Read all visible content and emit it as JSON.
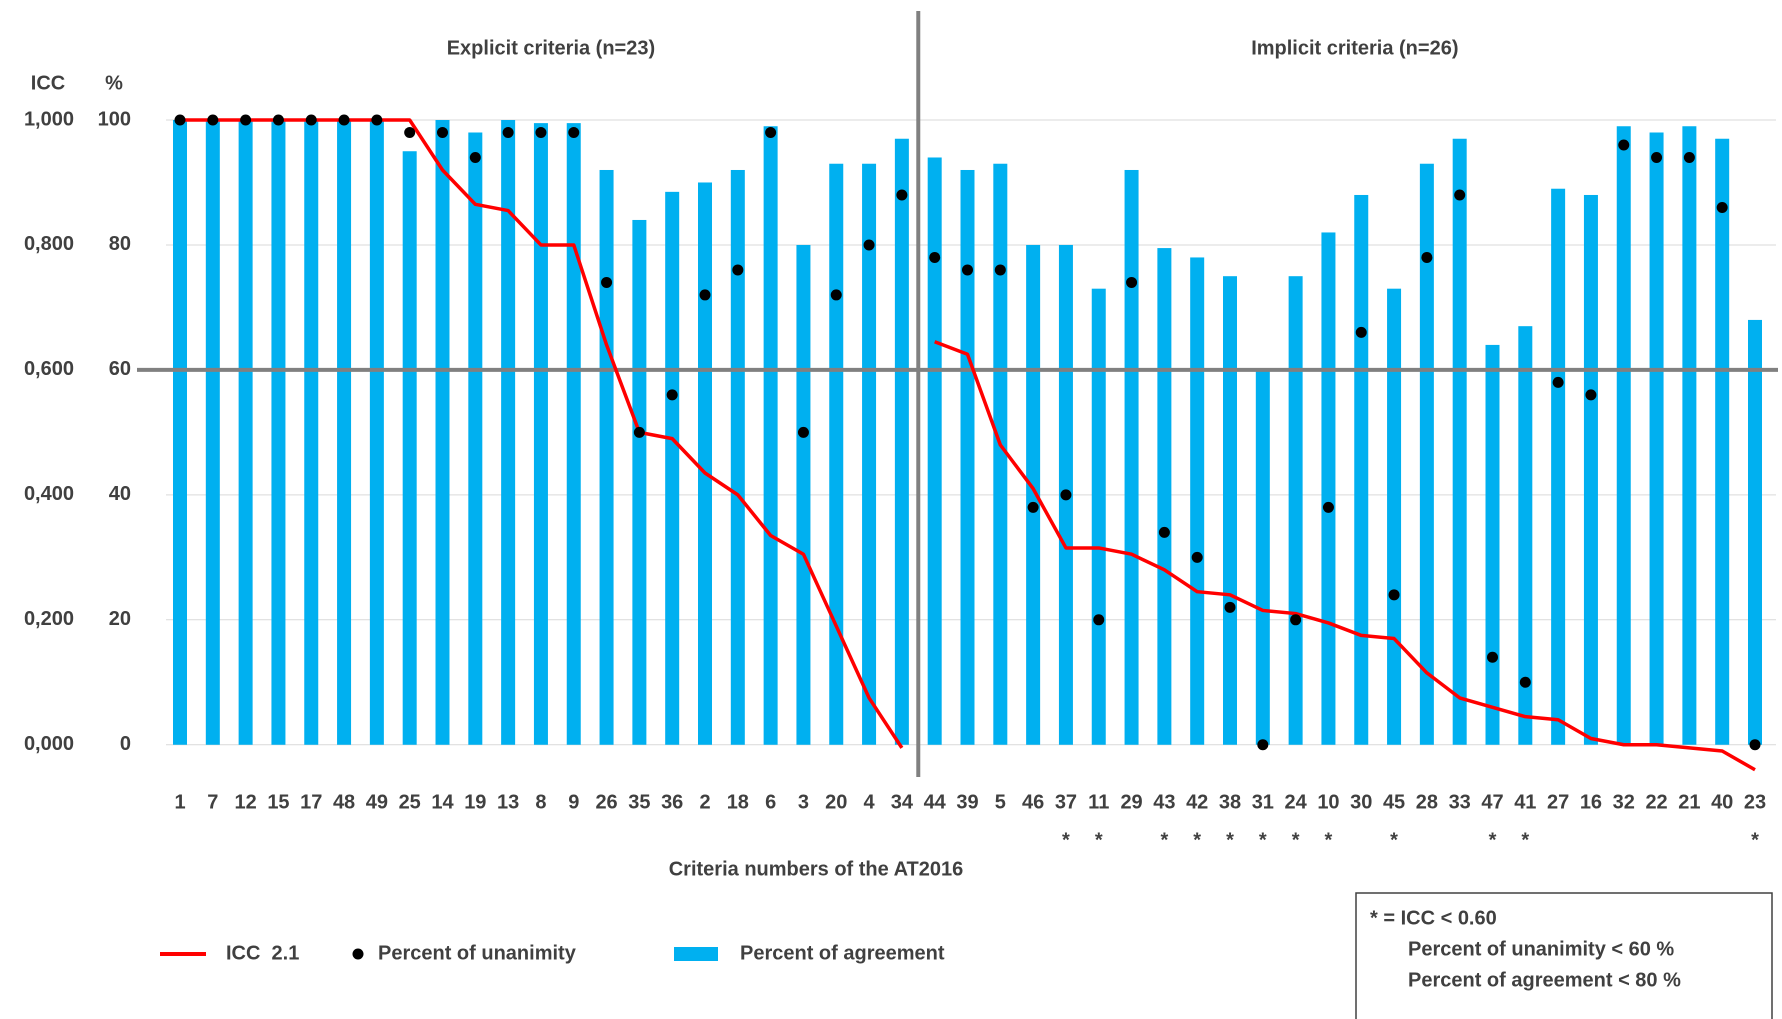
{
  "chart_data": {
    "type": "combo",
    "x_label": "Criteria numbers of the AT2016",
    "y_label": "%",
    "y2_label": "ICC",
    "groups": [
      {
        "title": "Explicit criteria (n=23)",
        "size": 23
      },
      {
        "title": "Implicit criteria (n=26)",
        "size": 26
      }
    ],
    "categories": [
      "1",
      "7",
      "12",
      "15",
      "17",
      "48",
      "49",
      "25",
      "14",
      "19",
      "13",
      "8",
      "9",
      "26",
      "35",
      "36",
      "2",
      "18",
      "6",
      "3",
      "20",
      "4",
      "34",
      "44",
      "39",
      "5",
      "46",
      "37",
      "11",
      "29",
      "43",
      "42",
      "38",
      "31",
      "24",
      "10",
      "30",
      "45",
      "28",
      "33",
      "47",
      "41",
      "27",
      "16",
      "32",
      "22",
      "21",
      "40",
      "23"
    ],
    "markers": [
      null,
      null,
      null,
      null,
      null,
      null,
      null,
      null,
      null,
      null,
      null,
      null,
      null,
      null,
      null,
      null,
      null,
      null,
      null,
      null,
      null,
      null,
      null,
      null,
      null,
      null,
      null,
      "*",
      "*",
      null,
      "*",
      "*",
      "*",
      "*",
      "*",
      "*",
      null,
      "*",
      null,
      null,
      "*",
      "*",
      null,
      null,
      null,
      null,
      null,
      null,
      "*"
    ],
    "series": [
      {
        "name": "ICC  2.1",
        "type": "line",
        "axis": "y2",
        "color": "#ff0000",
        "values": [
          1.0,
          1.0,
          1.0,
          1.0,
          1.0,
          1.0,
          1.0,
          1.0,
          0.92,
          0.865,
          0.855,
          0.8,
          0.8,
          0.64,
          0.5,
          0.49,
          0.435,
          0.4,
          0.335,
          0.305,
          0.19,
          0.075,
          -0.005,
          0.645,
          0.625,
          0.48,
          0.41,
          0.315,
          0.315,
          0.305,
          0.28,
          0.245,
          0.24,
          0.215,
          0.21,
          0.195,
          0.175,
          0.17,
          0.115,
          0.075,
          0.06,
          0.045,
          0.04,
          0.01,
          0.0,
          0.0,
          -0.005,
          -0.01,
          -0.04
        ]
      },
      {
        "name": "Percent of unanimity",
        "type": "dot",
        "color": "#000000",
        "values": [
          100,
          100,
          100,
          100,
          100,
          100,
          100,
          98,
          98,
          94,
          98,
          98,
          98,
          74,
          50,
          56,
          72,
          76,
          98,
          50,
          72,
          80,
          88,
          78,
          76,
          76,
          38,
          40,
          20,
          74,
          34,
          30,
          22,
          0,
          20,
          38,
          66,
          24,
          78,
          88,
          14,
          10,
          58,
          56,
          96,
          94,
          94,
          86,
          0
        ]
      },
      {
        "name": "Percent of agreement",
        "type": "bar",
        "color": "#00b0f0",
        "values": [
          100,
          100,
          100,
          100,
          100,
          100,
          100,
          95,
          100,
          98,
          100,
          99.5,
          99.5,
          92,
          84,
          88.5,
          90,
          92,
          99,
          80,
          93,
          93,
          97,
          94,
          92,
          93,
          80,
          80,
          73,
          92,
          79.5,
          78,
          75,
          60,
          75,
          82,
          88,
          73,
          93,
          97,
          64,
          67,
          89,
          88,
          99,
          98,
          99,
          97,
          68
        ]
      }
    ],
    "ylim": [
      -5,
      100
    ],
    "yticks": [
      0,
      20,
      40,
      60,
      80,
      100
    ],
    "y2lim": [
      -0.05,
      1.0
    ],
    "y2ticks": [
      {
        "value": 0,
        "label": "0,000"
      },
      {
        "value": 0.2,
        "label": "0,200"
      },
      {
        "value": 0.4,
        "label": "0,400"
      },
      {
        "value": 0.6,
        "label": "0,600"
      },
      {
        "value": 0.8,
        "label": "0,800"
      },
      {
        "value": 1.0,
        "label": "1,000"
      }
    ],
    "reference_line": 60,
    "grid": true,
    "note_lines": [
      "* = ICC < 0.60",
      "Percent of unanimity < 60 %",
      "Percent of agreement < 80 %"
    ]
  }
}
